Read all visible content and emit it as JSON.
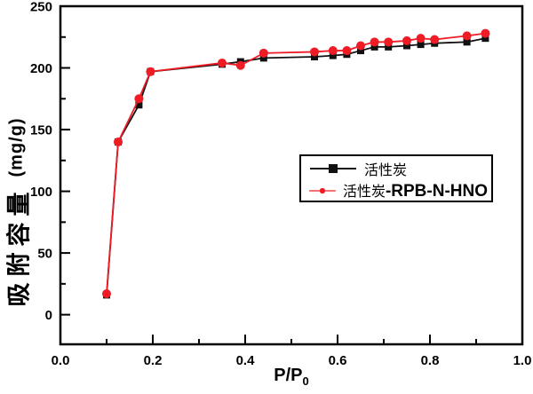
{
  "chart_data": {
    "type": "line",
    "title": "",
    "xlabel": "P/P0",
    "xlabel_main": "P/P",
    "xlabel_sub": "0",
    "ylabel": "吸附容量 (mg/g)",
    "ylabel_cjk": "吸附容量",
    "ylabel_unit": "(mg/g)",
    "xlim": [
      0.0,
      1.0
    ],
    "ylim": [
      -24,
      250
    ],
    "xticks": [
      0.0,
      0.2,
      0.4,
      0.6,
      0.8,
      1.0
    ],
    "xtick_labels": [
      "0.0",
      "0.2",
      "0.4",
      "0.6",
      "0.8",
      "1.0"
    ],
    "x_minor_step": 0.1,
    "yticks": [
      0,
      50,
      100,
      150,
      200,
      250
    ],
    "ytick_labels": [
      "0",
      "50",
      "100",
      "150",
      "200",
      "250"
    ],
    "y_minor_step": 25,
    "grid": false,
    "legend_position": "center-right",
    "x": [
      0.1,
      0.125,
      0.17,
      0.195,
      0.35,
      0.39,
      0.44,
      0.55,
      0.59,
      0.62,
      0.65,
      0.68,
      0.71,
      0.75,
      0.78,
      0.81,
      0.88,
      0.92
    ],
    "series": [
      {
        "name": "活性炭",
        "marker": "square",
        "color": "#111111",
        "values": [
          16,
          140,
          170,
          197,
          203,
          205,
          208,
          209,
          210,
          211,
          214,
          217,
          217,
          218,
          219,
          220,
          221,
          224
        ]
      },
      {
        "name": "活性炭-RPB-N-HNO",
        "marker": "circle",
        "color": "#ee1c25",
        "values": [
          17,
          140,
          175,
          197,
          204,
          202,
          212,
          213,
          214,
          214,
          218,
          221,
          221,
          222,
          224,
          223,
          226,
          228
        ]
      }
    ]
  },
  "legend": {
    "items": [
      {
        "cjk": "活性炭",
        "latin": "",
        "marker": "square",
        "color": "#111111"
      },
      {
        "cjk": "活性炭",
        "latin": "-RPB-N-HNO",
        "marker": "circle",
        "color": "#ee1c25"
      }
    ]
  },
  "colors": {
    "background": "#ffffff",
    "axis": "#000000"
  }
}
